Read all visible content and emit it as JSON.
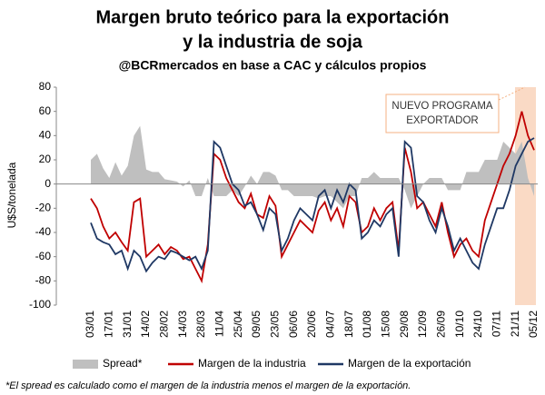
{
  "chart_data": {
    "type": "line",
    "title": [
      "Margen bruto teórico para la exportación",
      "y la industria de soja"
    ],
    "subtitle": "@BCRmercados en base a CAC y cálculos propios",
    "y_label": "U$S/tonelada",
    "annotation": [
      "NUEVO PROGRAMA",
      "EXPORTADOR"
    ],
    "footnote": "*El spread es calculado como el margen de la industria menos el margen de la exportación.",
    "categories": [
      "03/01",
      null,
      null,
      "17/01",
      null,
      null,
      "31/01",
      null,
      null,
      "14/02",
      null,
      null,
      "28/02",
      null,
      null,
      "14/03",
      null,
      null,
      "28/03",
      null,
      null,
      "11/04",
      null,
      null,
      "25/04",
      null,
      null,
      "09/05",
      null,
      null,
      "23/05",
      null,
      null,
      "06/06",
      null,
      null,
      "20/06",
      null,
      null,
      "04/07",
      null,
      null,
      "18/07",
      null,
      null,
      "01/08",
      null,
      null,
      "15/08",
      null,
      null,
      "29/08",
      null,
      null,
      "12/09",
      null,
      null,
      "26/09",
      null,
      null,
      "10/10",
      null,
      null,
      "24/10",
      null,
      null,
      "07/11",
      null,
      null,
      "21/11",
      null,
      null,
      "05/12"
    ],
    "series": [
      {
        "name": "Spread*",
        "kind": "area",
        "color": "#bfbfbf",
        "values": [
          20,
          25,
          13,
          5,
          18,
          7,
          15,
          40,
          48,
          12,
          10,
          10,
          4,
          3,
          2,
          -2,
          3,
          -10,
          -10,
          5,
          -10,
          -10,
          -10,
          -5,
          -10,
          -2,
          7,
          0,
          10,
          10,
          7,
          -5,
          -5,
          -10,
          -10,
          -10,
          -10,
          -12,
          -10,
          -10,
          -15,
          -20,
          -10,
          -10,
          5,
          5,
          10,
          5,
          5,
          5,
          5,
          -5,
          -20,
          -10,
          0,
          5,
          5,
          5,
          -5,
          -5,
          -5,
          10,
          10,
          10,
          20,
          20,
          20,
          35,
          30,
          25,
          35,
          5,
          -10
        ]
      },
      {
        "name": "Margen de la industria",
        "kind": "line",
        "color": "#c00000",
        "values": [
          -12,
          -20,
          -35,
          -45,
          -40,
          -48,
          -55,
          -15,
          -12,
          -60,
          -55,
          -50,
          -58,
          -52,
          -55,
          -62,
          -60,
          -70,
          -80,
          -50,
          25,
          20,
          5,
          -5,
          -15,
          -20,
          -8,
          -25,
          -28,
          -10,
          -18,
          -60,
          -50,
          -40,
          -30,
          -35,
          -40,
          -22,
          -15,
          -30,
          -20,
          -35,
          -10,
          -15,
          -40,
          -35,
          -20,
          -30,
          -20,
          -15,
          -55,
          30,
          10,
          -20,
          -15,
          -25,
          -35,
          -15,
          -40,
          -60,
          -50,
          -45,
          -55,
          -60,
          -30,
          -15,
          0,
          15,
          25,
          40,
          60,
          40,
          28
        ]
      },
      {
        "name": "Margen de la exportación",
        "kind": "line",
        "color": "#1f3864",
        "values": [
          -32,
          -45,
          -48,
          -50,
          -58,
          -55,
          -70,
          -55,
          -60,
          -72,
          -65,
          -60,
          -62,
          -55,
          -57,
          -60,
          -63,
          -60,
          -70,
          -55,
          35,
          30,
          15,
          0,
          -5,
          -18,
          -15,
          -25,
          -38,
          -20,
          -25,
          -55,
          -45,
          -30,
          -20,
          -25,
          -30,
          -10,
          -5,
          -20,
          -5,
          -15,
          0,
          -5,
          -45,
          -40,
          -30,
          -35,
          -25,
          -20,
          -60,
          35,
          30,
          -10,
          -15,
          -30,
          -40,
          -20,
          -35,
          -55,
          -45,
          -55,
          -65,
          -70,
          -50,
          -35,
          -20,
          -20,
          -5,
          15,
          25,
          35,
          38
        ]
      }
    ],
    "ylim": [
      -100,
      80
    ],
    "yticks": [
      -100,
      -80,
      -60,
      -40,
      -20,
      0,
      20,
      40,
      60,
      80
    ],
    "grid": false
  }
}
